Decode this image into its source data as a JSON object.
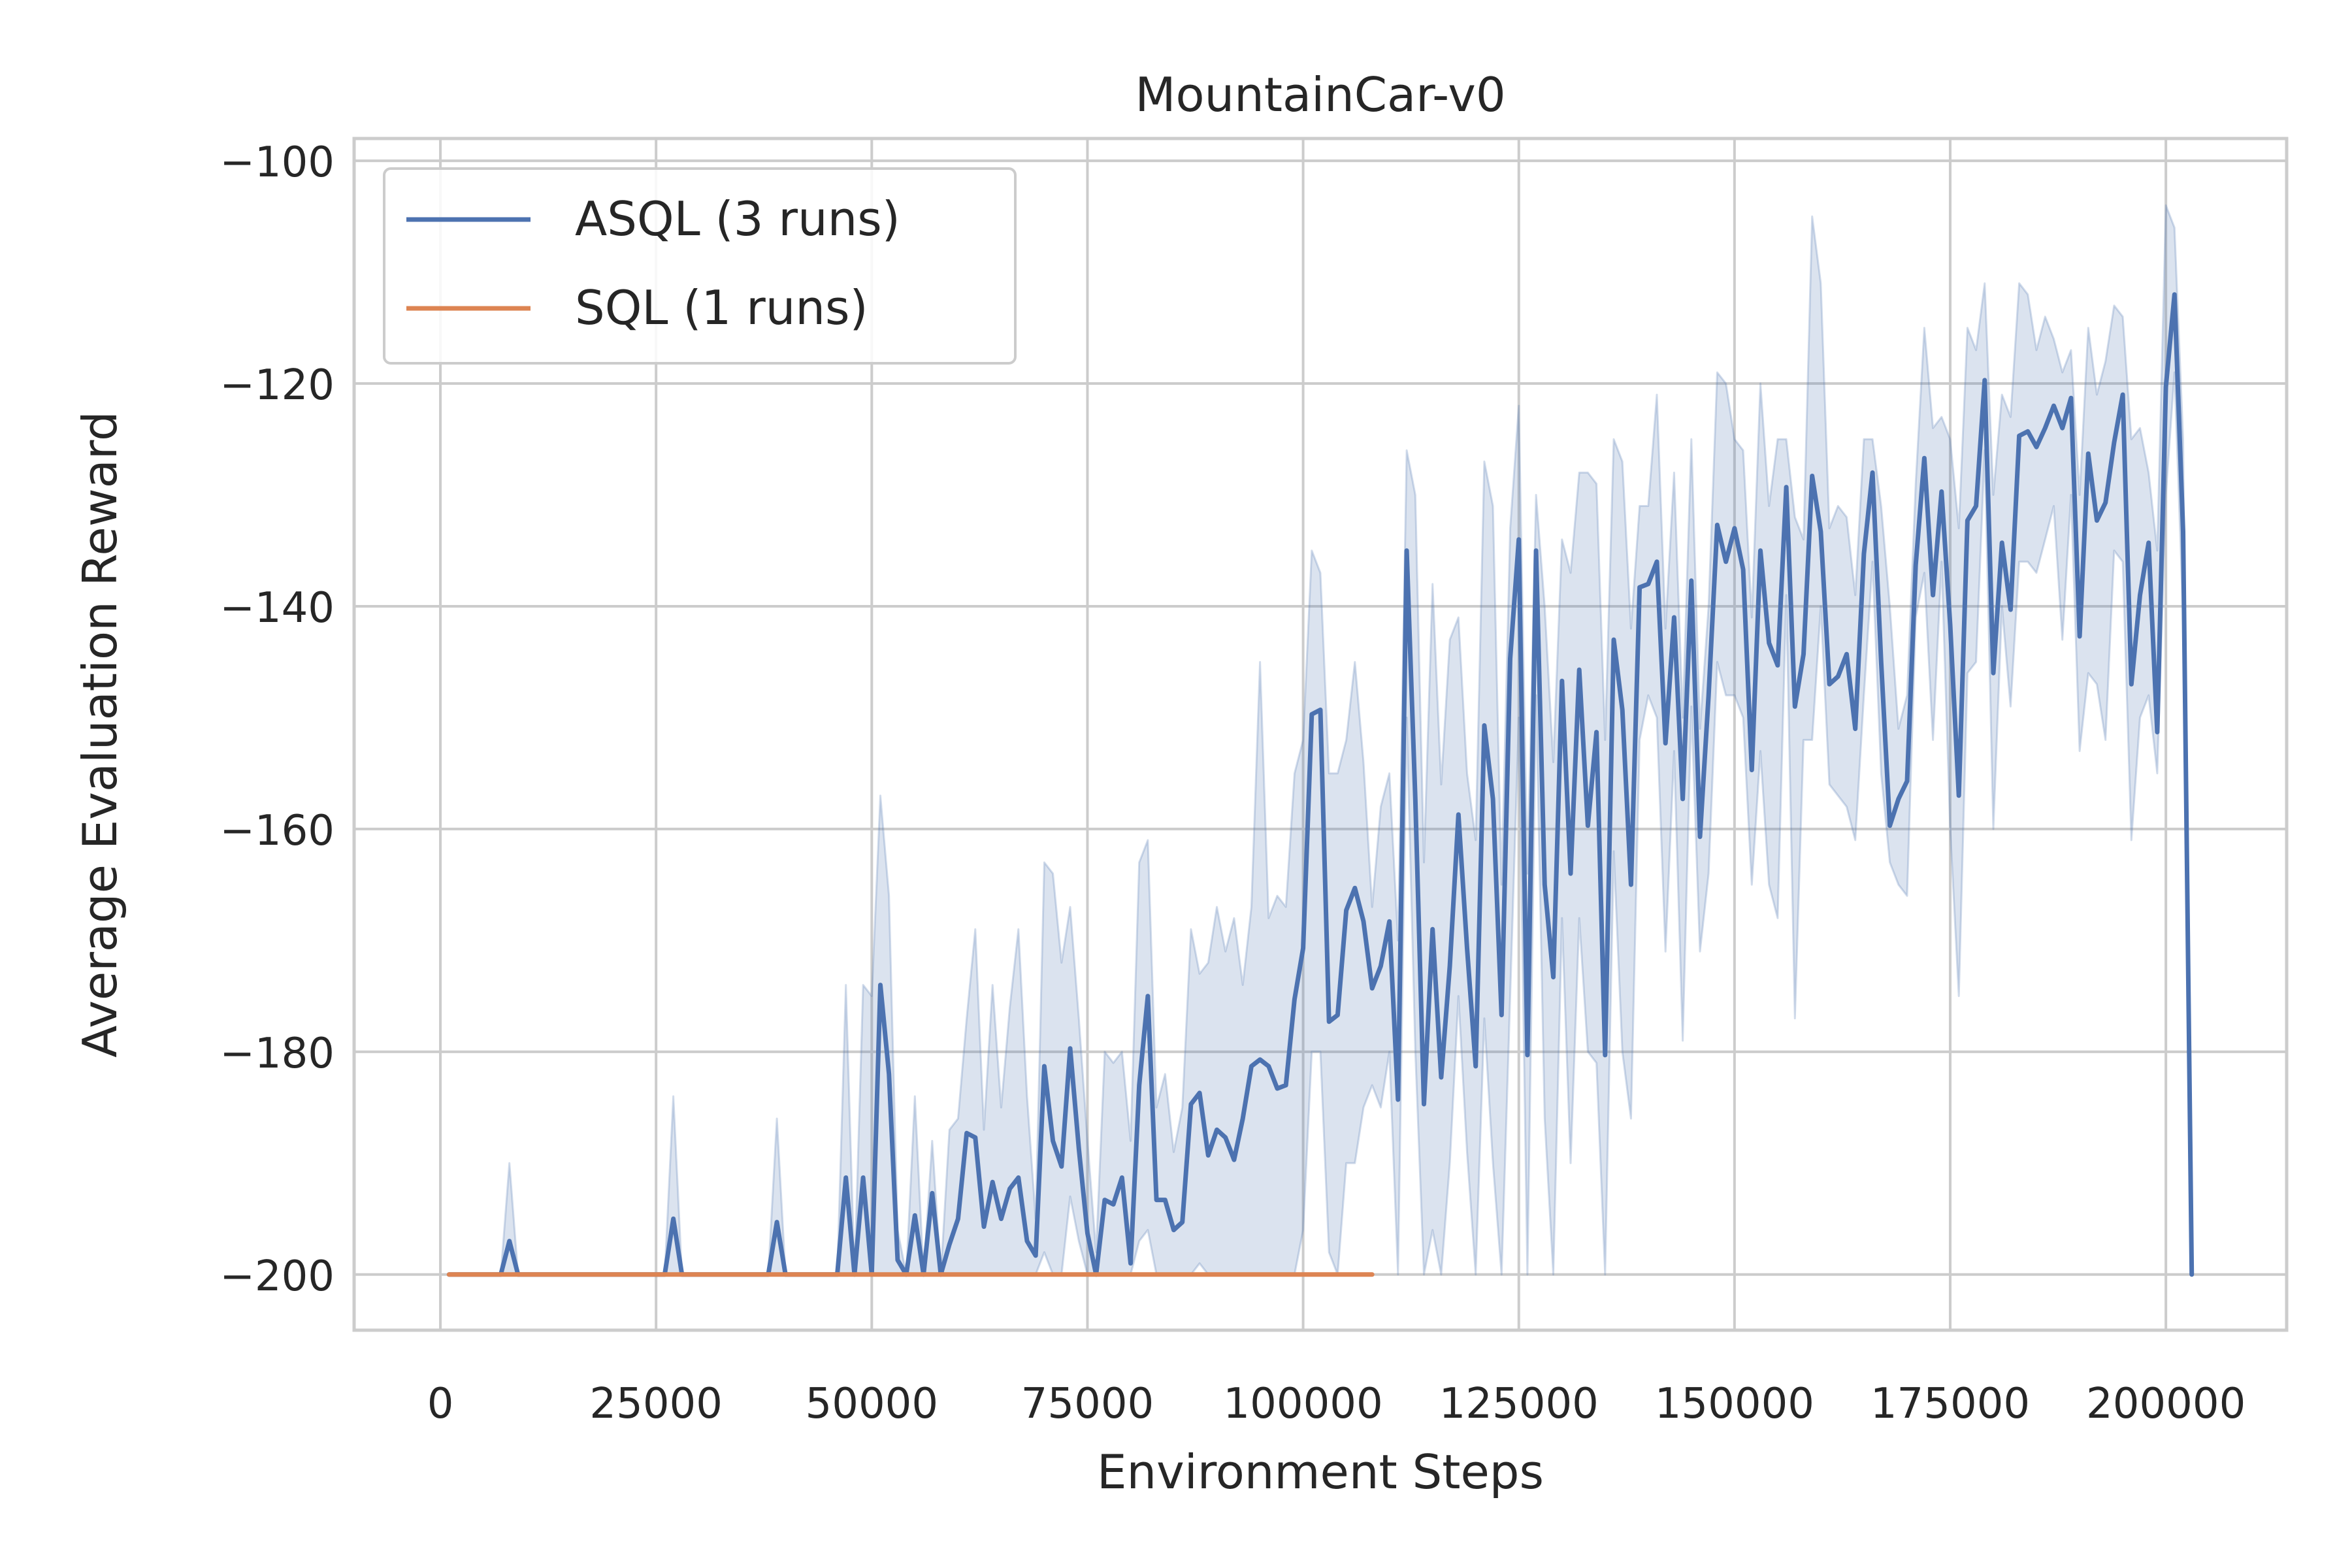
{
  "chart_data": {
    "type": "line",
    "title": "MountainCar-v0",
    "xlabel": "Environment Steps",
    "ylabel": "Average Evaluation Reward",
    "xlim": [
      -10000,
      214000
    ],
    "ylim": [
      -205,
      -98
    ],
    "x_ticks": [
      0,
      25000,
      50000,
      75000,
      100000,
      125000,
      150000,
      175000,
      200000
    ],
    "x_tick_labels": [
      "0",
      "25000",
      "50000",
      "75000",
      "100000",
      "125000",
      "150000",
      "175000",
      "200000"
    ],
    "y_ticks": [
      -100,
      -120,
      -140,
      -160,
      -180,
      -200
    ],
    "y_tick_labels": [
      "−100",
      "−120",
      "−140",
      "−160",
      "−180",
      "−200"
    ],
    "grid": true,
    "legend_position": "top-left",
    "series": [
      {
        "name": "ASQL (3 runs)",
        "color": "#4c72b0",
        "band_color": "#4c72b0",
        "x": [
          1000,
          4000,
          7000,
          8000,
          9000,
          10000,
          13000,
          20000,
          26000,
          27000,
          28000,
          30000,
          38000,
          39000,
          40000,
          42000,
          46000,
          47000,
          48000,
          49000,
          50000,
          51000,
          52000,
          53000,
          54000,
          55000,
          56000,
          57000,
          58000,
          59000,
          60000,
          61000,
          62000,
          63000,
          64000,
          65000,
          66000,
          67000,
          68000,
          69000,
          70000,
          71000,
          72000,
          73000,
          74000,
          75000,
          76000,
          77000,
          78000,
          79000,
          80000,
          81000,
          82000,
          83000,
          84000,
          85000,
          86000,
          87000,
          88000,
          89000,
          90000,
          91000,
          92000,
          93000,
          94000,
          95000,
          96000,
          97000,
          98000,
          99000,
          100000,
          101000,
          102000,
          103000,
          104000,
          105000,
          106000,
          107000,
          108000,
          109000,
          110000,
          111000,
          112000,
          113000,
          114000,
          115000,
          116000,
          117000,
          118000,
          119000,
          120000,
          121000,
          122000,
          123000,
          124000,
          125000,
          126000,
          127000,
          128000,
          129000,
          130000,
          131000,
          132000,
          133000,
          134000,
          135000,
          136000,
          137000,
          138000,
          139000,
          140000,
          141000,
          142000,
          143000,
          144000,
          145000,
          146000,
          147000,
          148000,
          149000,
          150000,
          151000,
          152000,
          153000,
          154000,
          155000,
          156000,
          157000,
          158000,
          159000,
          160000,
          161000,
          162000,
          163000,
          164000,
          165000,
          166000,
          167000,
          168000,
          169000,
          170000,
          171000,
          172000,
          173000,
          174000,
          175000,
          176000,
          177000,
          178000,
          179000,
          180000,
          181000,
          182000,
          183000,
          184000,
          185000,
          186000,
          187000,
          188000,
          189000,
          190000,
          191000,
          192000,
          193000,
          194000,
          195000,
          196000,
          197000,
          198000,
          199000,
          200000,
          201000,
          202000,
          203000
        ],
        "y": [
          -200,
          -200,
          -200,
          -197,
          -200,
          -200,
          -200,
          -200,
          -200,
          -195,
          -200,
          -200,
          -200,
          -195.3,
          -200,
          -200,
          -200,
          -191.3,
          -200,
          -191.3,
          -200,
          -174,
          -182,
          -198.7,
          -200,
          -194.7,
          -200,
          -192.7,
          -200,
          -197.3,
          -195,
          -187.3,
          -187.7,
          -195.7,
          -191.7,
          -195,
          -192.3,
          -191.3,
          -197,
          -198.3,
          -181.3,
          -188,
          -190.3,
          -179.7,
          -188.7,
          -196.3,
          -200,
          -193.3,
          -193.7,
          -191.3,
          -199,
          -183,
          -175,
          -193.3,
          -193.3,
          -196,
          -195.3,
          -184.7,
          -183.7,
          -189.3,
          -187,
          -187.7,
          -189.7,
          -186,
          -181.3,
          -180.7,
          -181.3,
          -183.3,
          -183,
          -175.3,
          -170.7,
          -149.7,
          -149.3,
          -177.3,
          -176.7,
          -167.3,
          -165.3,
          -168.3,
          -174.3,
          -172.3,
          -168.3,
          -184.3,
          -135,
          -157.3,
          -184.7,
          -169,
          -182.3,
          -172.3,
          -158.7,
          -170.7,
          -181.3,
          -150.7,
          -157.3,
          -176.7,
          -144.7,
          -134,
          -180.3,
          -135,
          -165,
          -173.3,
          -146.7,
          -164,
          -145.7,
          -159.7,
          -151.3,
          -180.3,
          -143,
          -149.3,
          -165,
          -138.3,
          -138,
          -136,
          -152.3,
          -141,
          -157.3,
          -137.7,
          -160.7,
          -148,
          -132.7,
          -136,
          -133,
          -136.7,
          -154.7,
          -135,
          -143.3,
          -145.3,
          -129.3,
          -149,
          -144.3,
          -128.3,
          -133.3,
          -147,
          -146.3,
          -144.3,
          -151,
          -135.3,
          -128,
          -145,
          -159.7,
          -157.3,
          -155.7,
          -136.3,
          -126.7,
          -139,
          -129.7,
          -141.7,
          -157,
          -132.3,
          -131,
          -119.7,
          -146,
          -134.3,
          -140.3,
          -124.7,
          -124.3,
          -125.7,
          -124,
          -122,
          -124,
          -121.3,
          -142.7,
          -126.3,
          -132.3,
          -130.7,
          -125.3,
          -121,
          -147,
          -139,
          -134.3,
          -151.3,
          -120.3,
          -112,
          -133.3,
          -200
        ],
        "y_upper": [
          -200,
          -200,
          -200,
          -190,
          -200,
          -200,
          -200,
          -200,
          -200,
          -184,
          -200,
          -200,
          -200,
          -186,
          -200,
          -200,
          -200,
          -174,
          -200,
          -174,
          -175,
          -157,
          -166,
          -196,
          -200,
          -184,
          -200,
          -188,
          -200,
          -187,
          -186,
          -177,
          -169,
          -187,
          -174,
          -185,
          -176,
          -169,
          -184,
          -195,
          -163,
          -164,
          -172,
          -167,
          -177,
          -188,
          -198,
          -180,
          -181,
          -180,
          -188,
          -163,
          -161,
          -185,
          -182,
          -189,
          -185,
          -169,
          -173,
          -172,
          -167,
          -171,
          -168,
          -174,
          -167,
          -145,
          -168,
          -166,
          -167,
          -155,
          -152,
          -135,
          -137,
          -155,
          -155,
          -152,
          -145,
          -154,
          -167,
          -158,
          -155,
          -170,
          -126,
          -130,
          -163,
          -138,
          -156,
          -143,
          -141,
          -155,
          -161,
          -127,
          -131,
          -165,
          -133,
          -122,
          -164,
          -130,
          -140,
          -154,
          -134,
          -137,
          -128,
          -128,
          -129,
          -152,
          -125,
          -127,
          -142,
          -131,
          -131,
          -121,
          -142,
          -128,
          -150,
          -125,
          -151,
          -140,
          -119,
          -120,
          -125,
          -126,
          -141,
          -120,
          -131,
          -125,
          -125,
          -132,
          -134,
          -105,
          -111,
          -133,
          -131,
          -132,
          -139,
          -125,
          -125,
          -131,
          -140,
          -151,
          -148,
          -129,
          -115,
          -124,
          -123,
          -125,
          -133,
          -115,
          -117,
          -111,
          -130,
          -121,
          -123,
          -111,
          -112,
          -117,
          -114,
          -116,
          -119,
          -117,
          -130,
          -115,
          -121,
          -118,
          -113,
          -114,
          -125,
          -124,
          -128,
          -135,
          -104,
          -106,
          -125,
          -200
        ],
        "y_lower": [
          -200,
          -200,
          -200,
          -200,
          -200,
          -200,
          -200,
          -200,
          -200,
          -200,
          -200,
          -200,
          -200,
          -200,
          -200,
          -200,
          -200,
          -200,
          -200,
          -200,
          -200,
          -200,
          -200,
          -200,
          -200,
          -200,
          -200,
          -200,
          -200,
          -200,
          -200,
          -200,
          -200,
          -200,
          -200,
          -200,
          -200,
          -200,
          -200,
          -200,
          -198,
          -200,
          -200,
          -193,
          -197,
          -200,
          -200,
          -200,
          -200,
          -200,
          -200,
          -197,
          -196,
          -200,
          -200,
          -200,
          -200,
          -200,
          -199,
          -200,
          -200,
          -200,
          -200,
          -200,
          -200,
          -200,
          -200,
          -200,
          -200,
          -200,
          -196,
          -180,
          -180,
          -198,
          -200,
          -190,
          -190,
          -185,
          -183,
          -185,
          -180,
          -200,
          -150,
          -180,
          -200,
          -196,
          -200,
          -190,
          -175,
          -189,
          -200,
          -177,
          -190,
          -200,
          -175,
          -150,
          -200,
          -148,
          -186,
          -200,
          -168,
          -190,
          -168,
          -180,
          -181,
          -200,
          -162,
          -180,
          -186,
          -152,
          -148,
          -150,
          -171,
          -153,
          -179,
          -149,
          -171,
          -164,
          -145,
          -148,
          -148,
          -150,
          -165,
          -153,
          -165,
          -168,
          -139,
          -177,
          -152,
          -152,
          -140,
          -156,
          -157,
          -158,
          -161,
          -148,
          -136,
          -155,
          -163,
          -165,
          -166,
          -141,
          -137,
          -152,
          -136,
          -160,
          -175,
          -146,
          -145,
          -126,
          -160,
          -140,
          -149,
          -136,
          -136,
          -137,
          -134,
          -131,
          -143,
          -130,
          -153,
          -146,
          -147,
          -152,
          -135,
          -136,
          -161,
          -150,
          -148,
          -155,
          -130,
          -119,
          -141,
          -200
        ]
      },
      {
        "name": "SQL (1 runs)",
        "color": "#dd8452",
        "x": [
          1000,
          108000
        ],
        "y": [
          -200,
          -200
        ]
      }
    ]
  }
}
